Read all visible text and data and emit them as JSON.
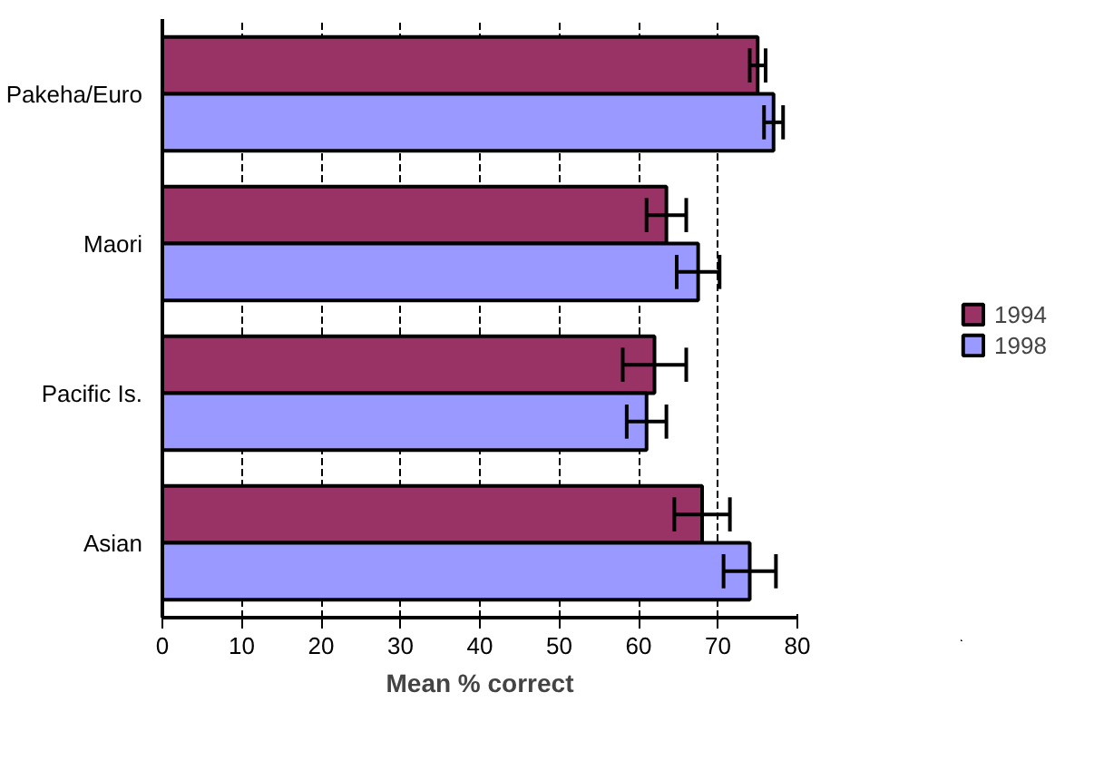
{
  "chart_data": {
    "type": "bar",
    "orientation": "horizontal",
    "xlabel": "Mean % correct",
    "categories": [
      "Pakeha/Euro",
      "Maori",
      "Pacific Is.",
      "Asian"
    ],
    "series": [
      {
        "name": "1994",
        "color": "#993366",
        "values": [
          75,
          63.5,
          62,
          68
        ],
        "errors": [
          1,
          2.5,
          4,
          3.5
        ]
      },
      {
        "name": "1998",
        "color": "#9999ff",
        "values": [
          77,
          67.5,
          61,
          74
        ],
        "errors": [
          1.2,
          2.7,
          2.5,
          3.3
        ]
      }
    ],
    "xlim": [
      0,
      80
    ],
    "xticks": [
      0,
      10,
      20,
      30,
      40,
      50,
      60,
      70,
      80
    ],
    "grid": "x",
    "legend": "right"
  }
}
